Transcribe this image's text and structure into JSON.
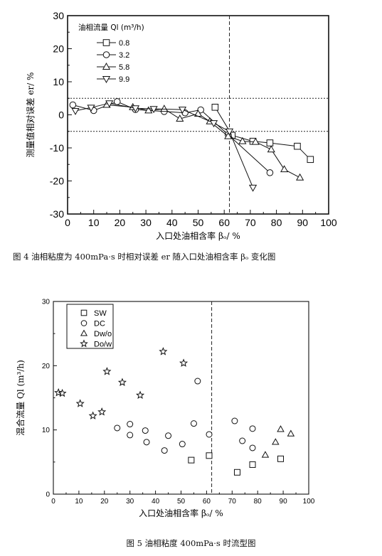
{
  "figures": [
    {
      "caption": "图 4   油相粘度为 400mPa·s 时相对误差 er 随入口处油相含率 βₒ 变化图"
    },
    {
      "caption": "图 5   油相粘度 400mPa·s 时流型图"
    }
  ],
  "chart_data": [
    {
      "type": "line",
      "title": "",
      "xlabel": "入口处油相含率 βₒ/ %",
      "ylabel": "测量值相对误差 er/ %",
      "xlim": [
        0,
        100
      ],
      "ylim": [
        -30,
        30
      ],
      "x_ticks": [
        "0",
        "10",
        "20",
        "30",
        "40",
        "50",
        "60",
        "70",
        "80",
        "90",
        "100"
      ],
      "y_ticks": [
        "30",
        "20",
        "10",
        "0",
        "-10",
        "-20",
        "-30"
      ],
      "legend_title": "油相流量 Ql (m³/h)",
      "legend_position": "top-left",
      "reference_lines": {
        "horizontal": [
          5,
          -5
        ],
        "vertical": [
          62
        ]
      },
      "series": [
        {
          "name": "0.8",
          "marker": "square",
          "x": [
            56.5,
            63,
            71,
            77.5,
            88,
            93
          ],
          "y": [
            2.3,
            -6.2,
            -8,
            -8.5,
            -9.5,
            -13.5
          ]
        },
        {
          "name": "3.2",
          "marker": "circle",
          "x": [
            2,
            10,
            19,
            26,
            37,
            45,
            51,
            61.5,
            77.5
          ],
          "y": [
            3,
            1.3,
            4,
            1.6,
            1,
            0.6,
            1.5,
            -6,
            -17.5
          ]
        },
        {
          "name": "5.8",
          "marker": "triangle-up",
          "x": [
            15,
            25,
            31,
            37,
            43,
            50,
            54.5,
            61.5,
            67,
            72,
            78,
            83,
            89
          ],
          "y": [
            3,
            2.3,
            1.3,
            1.8,
            -1.2,
            0.3,
            -2,
            -6.5,
            -8,
            -8.2,
            -10.5,
            -16.5,
            -19
          ]
        },
        {
          "name": "9.9",
          "marker": "triangle-down",
          "x": [
            3,
            9,
            16,
            26,
            33,
            44,
            56,
            62,
            71
          ],
          "y": [
            1.2,
            2.2,
            3.5,
            2,
            1.8,
            1.6,
            -2.5,
            -5,
            -22
          ]
        }
      ]
    },
    {
      "type": "scatter",
      "title": "",
      "xlabel": "入口处油相含率 βₒ/ %",
      "ylabel": "混合流量 Ql (m³/h)",
      "xlim": [
        0,
        100
      ],
      "ylim": [
        0,
        30
      ],
      "x_ticks": [
        "0",
        "10",
        "20",
        "30",
        "40",
        "50",
        "60",
        "70",
        "80",
        "90",
        "100"
      ],
      "y_ticks": [
        "30",
        "20",
        "10",
        "0"
      ],
      "legend_position": "top-left",
      "reference_lines": {
        "vertical": [
          62
        ]
      },
      "series": [
        {
          "name": "SW",
          "marker": "square",
          "x": [
            54,
            61,
            72,
            78,
            89
          ],
          "y": [
            5.3,
            6,
            3.4,
            4.6,
            5.5
          ]
        },
        {
          "name": "DC",
          "marker": "circle",
          "x": [
            25,
            30,
            30,
            36,
            36.5,
            43.5,
            45,
            50.5,
            55,
            56.5,
            61,
            71,
            74,
            78,
            78
          ],
          "y": [
            10.3,
            10.9,
            9.2,
            9.9,
            8.1,
            6.8,
            9.1,
            7.8,
            11,
            17.6,
            9.3,
            11.4,
            8.3,
            10.2,
            7.2
          ]
        },
        {
          "name": "Dw/o",
          "marker": "triangle-up",
          "x": [
            83,
            87,
            89,
            93
          ],
          "y": [
            6.1,
            8.1,
            10.1,
            9.4
          ]
        },
        {
          "name": "Do/w",
          "marker": "star",
          "x": [
            2,
            3.5,
            10.5,
            15.5,
            19,
            21,
            27,
            34,
            43,
            51
          ],
          "y": [
            15.8,
            15.7,
            14.1,
            12.2,
            12.8,
            19.1,
            17.4,
            15.4,
            22.2,
            20.4
          ]
        }
      ]
    }
  ]
}
